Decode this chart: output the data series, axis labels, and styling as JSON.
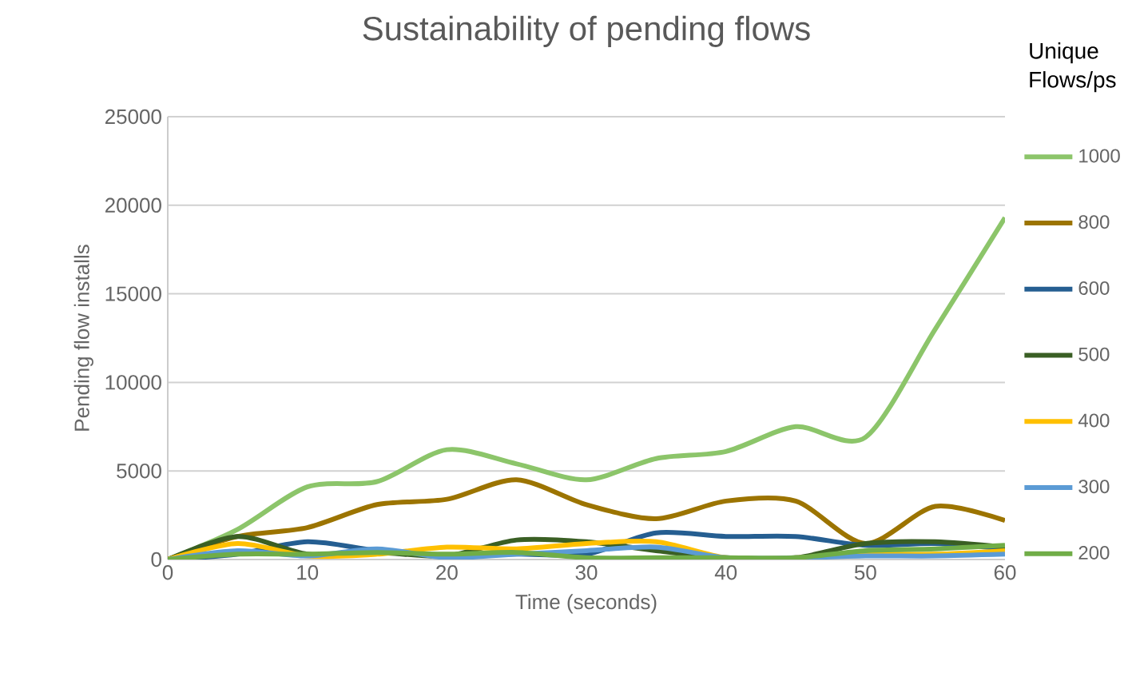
{
  "chart_data": {
    "type": "line",
    "title": "Sustainability of pending flows",
    "xlabel": "Time (seconds)",
    "ylabel": "Pending flow installs",
    "legend_title": "Unique Flows/ps",
    "x": [
      0,
      5,
      10,
      15,
      20,
      25,
      30,
      35,
      40,
      45,
      50,
      55,
      60
    ],
    "series": [
      {
        "name": "1000",
        "color": "#8cc56a",
        "values": [
          0,
          1700,
          4100,
          4400,
          6200,
          5400,
          4500,
          5700,
          6100,
          7500,
          6900,
          13000,
          19300
        ]
      },
      {
        "name": "800",
        "color": "#9c7400",
        "values": [
          0,
          1300,
          1800,
          3100,
          3400,
          4500,
          3100,
          2300,
          3300,
          3300,
          900,
          3000,
          2200
        ]
      },
      {
        "name": "600",
        "color": "#255e91",
        "values": [
          0,
          300,
          1000,
          500,
          200,
          300,
          300,
          1500,
          1300,
          1300,
          800,
          900,
          600
        ]
      },
      {
        "name": "500",
        "color": "#3a5f24",
        "values": [
          0,
          1300,
          300,
          400,
          200,
          1100,
          1000,
          500,
          100,
          100,
          900,
          1000,
          700
        ]
      },
      {
        "name": "400",
        "color": "#ffc000",
        "values": [
          0,
          900,
          200,
          300,
          700,
          600,
          900,
          1000,
          100,
          100,
          300,
          300,
          500
        ]
      },
      {
        "name": "300",
        "color": "#5b9bd5",
        "values": [
          0,
          500,
          200,
          600,
          100,
          300,
          500,
          700,
          100,
          100,
          200,
          200,
          300
        ]
      },
      {
        "name": "200",
        "color": "#70ad47",
        "values": [
          0,
          300,
          300,
          400,
          300,
          400,
          100,
          100,
          100,
          100,
          500,
          600,
          800
        ]
      }
    ],
    "xlim": [
      0,
      60
    ],
    "ylim": [
      0,
      25000
    ],
    "xticks": [
      0,
      10,
      20,
      30,
      40,
      50,
      60
    ],
    "yticks": [
      0,
      5000,
      10000,
      15000,
      20000,
      25000
    ],
    "grid": "y",
    "legend": "right",
    "marker": "none"
  }
}
